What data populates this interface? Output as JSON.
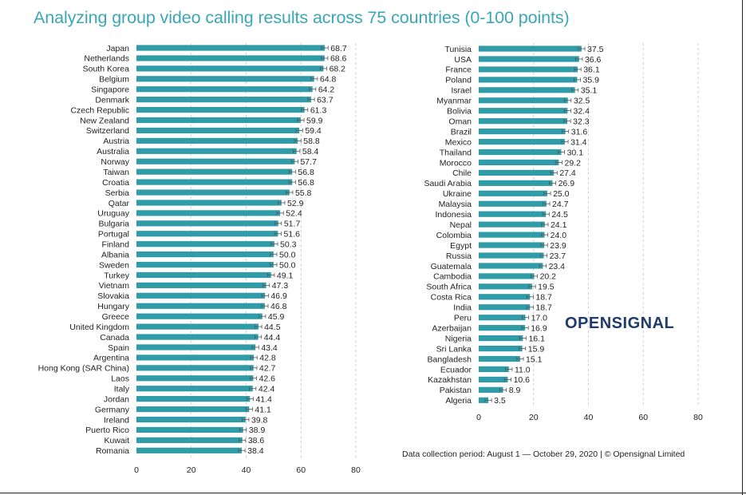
{
  "title": "Analyzing group video calling results across 75 countries (0-100 points)",
  "footer": "Data collection period: August 1 — October 29, 2020 | © Opensignal Limited",
  "logo_text": "OPENSIGNAL",
  "colors": {
    "bar": "#2f9ca8",
    "title": "#3aa7b6",
    "grid": "#cfcfcf",
    "logo": "#1f3a6b"
  },
  "chart_data": [
    {
      "type": "bar",
      "orientation": "horizontal",
      "categories": [
        "Japan",
        "Netherlands",
        "South Korea",
        "Belgium",
        "Singapore",
        "Denmark",
        "Czech Republic",
        "New Zealand",
        "Switzerland",
        "Austria",
        "Australia",
        "Norway",
        "Taiwan",
        "Croatia",
        "Serbia",
        "Qatar",
        "Uruguay",
        "Bulgaria",
        "Portugal",
        "Finland",
        "Albania",
        "Sweden",
        "Turkey",
        "Vietnam",
        "Slovakia",
        "Hungary",
        "Greece",
        "United Kingdom",
        "Canada",
        "Spain",
        "Argentina",
        "Hong Kong (SAR China)",
        "Laos",
        "Italy",
        "Jordan",
        "Germany",
        "Ireland",
        "Puerto Rico",
        "Kuwait",
        "Romania"
      ],
      "values": [
        68.7,
        68.6,
        68.2,
        64.8,
        64.2,
        63.7,
        61.3,
        59.9,
        59.4,
        58.8,
        58.4,
        57.7,
        56.8,
        56.8,
        55.8,
        52.9,
        52.4,
        51.7,
        51.6,
        50.3,
        50.0,
        50.0,
        49.1,
        47.3,
        46.9,
        46.8,
        45.9,
        44.5,
        44.4,
        43.4,
        42.8,
        42.7,
        42.6,
        42.4,
        41.4,
        41.1,
        39.8,
        38.9,
        38.6,
        38.4
      ],
      "value_labels": [
        "68.7",
        "68.6",
        "68.2",
        "64.8",
        "64.2",
        "63.7",
        "61.3",
        "59.9",
        "59.4",
        "58.8",
        "58.4",
        "57.7",
        "56.8",
        "56.8",
        "55.8",
        "52.9",
        "52.4",
        "51.7",
        "51.6",
        "50.3",
        "50.0",
        "50.0",
        "49.1",
        "47.3",
        "46.9",
        "46.8",
        "45.9",
        "44.5",
        "44.4",
        "43.4",
        "42.8",
        "42.7",
        "42.6",
        "42.4",
        "41.4",
        "41.1",
        "39.8",
        "38.9",
        "38.6",
        "38.4"
      ],
      "xlim": [
        0,
        80
      ],
      "xticks": [
        0,
        20,
        40,
        60,
        80
      ],
      "error_bars": true,
      "grid": "vertical dashed"
    },
    {
      "type": "bar",
      "orientation": "horizontal",
      "categories": [
        "Tunisia",
        "USA",
        "France",
        "Poland",
        "Israel",
        "Myanmar",
        "Bolivia",
        "Oman",
        "Brazil",
        "Mexico",
        "Thailand",
        "Morocco",
        "Chile",
        "Saudi Arabia",
        "Ukraine",
        "Malaysia",
        "Indonesia",
        "Nepal",
        "Colombia",
        "Egypt",
        "Russia",
        "Guatemala",
        "Cambodia",
        "South Africa",
        "Costa Rica",
        "India",
        "Peru",
        "Azerbaijan",
        "Nigeria",
        "Sri Lanka",
        "Bangladesh",
        "Ecuador",
        "Kazakhstan",
        "Pakistan",
        "Algeria"
      ],
      "values": [
        37.5,
        36.6,
        36.1,
        35.9,
        35.1,
        32.5,
        32.4,
        32.3,
        31.6,
        31.4,
        30.1,
        29.2,
        27.4,
        26.9,
        25.0,
        24.7,
        24.5,
        24.1,
        24.0,
        23.9,
        23.7,
        23.4,
        20.2,
        19.5,
        18.7,
        18.7,
        17.0,
        16.9,
        16.1,
        15.9,
        15.1,
        11.0,
        10.6,
        8.9,
        3.5
      ],
      "value_labels": [
        "37.5",
        "36.6",
        "36.1",
        "35.9",
        "35.1",
        "32.5",
        "32.4",
        "32.3",
        "31.6",
        "31.4",
        "30.1",
        "29.2",
        "27.4",
        "26.9",
        "25.0",
        "24.7",
        "24.5",
        "24.1",
        "24.0",
        "23.9",
        "23.7",
        "23.4",
        "20.2",
        "19.5",
        "18.7",
        "18.7",
        "17.0",
        "16.9",
        "16.1",
        "15.9",
        "15.1",
        "11.0",
        "10.6",
        "8.9",
        "3.5"
      ],
      "xlim": [
        0,
        80
      ],
      "xticks": [
        0,
        20,
        40,
        60,
        80
      ],
      "error_bars": true,
      "grid": "vertical dashed"
    }
  ]
}
